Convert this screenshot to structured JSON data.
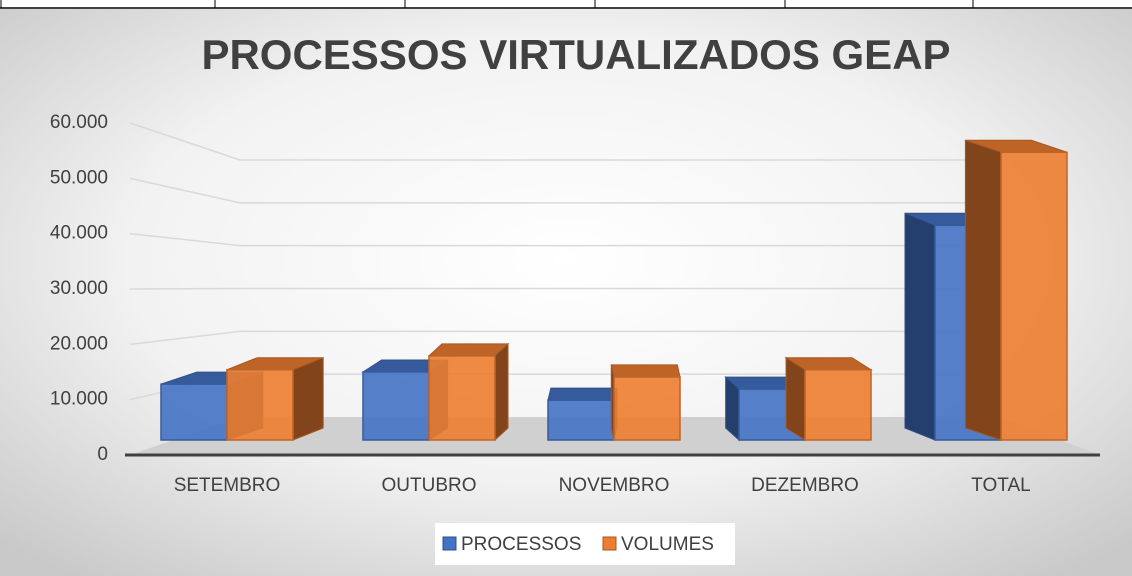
{
  "chart_data": {
    "type": "bar3d",
    "title": "PROCESSOS VIRTUALIZADOS GEAP",
    "categories": [
      "SETEMBRO",
      "OUTUBRO",
      "NOVEMBRO",
      "DEZEMBRO",
      "TOTAL"
    ],
    "series": [
      {
        "name": "PROCESSOS",
        "color": "#4472c4",
        "values": [
          10100,
          12300,
          7200,
          9200,
          38800
        ]
      },
      {
        "name": "VOLUMES",
        "color": "#ed7d31",
        "values": [
          12700,
          15200,
          11400,
          12700,
          52000
        ]
      }
    ],
    "ylim": [
      0,
      60000
    ],
    "yticks": [
      0,
      {
        "value": 10000,
        "label": "10.000"
      },
      {
        "value": 20000,
        "label": "20.000"
      },
      {
        "value": 30000,
        "label": "30.000"
      },
      {
        "value": 40000,
        "label": "40.000"
      },
      {
        "value": 50000,
        "label": "50.000"
      },
      {
        "value": 60000,
        "label": "60.000"
      }
    ],
    "grid": true,
    "legend": "bottom"
  }
}
